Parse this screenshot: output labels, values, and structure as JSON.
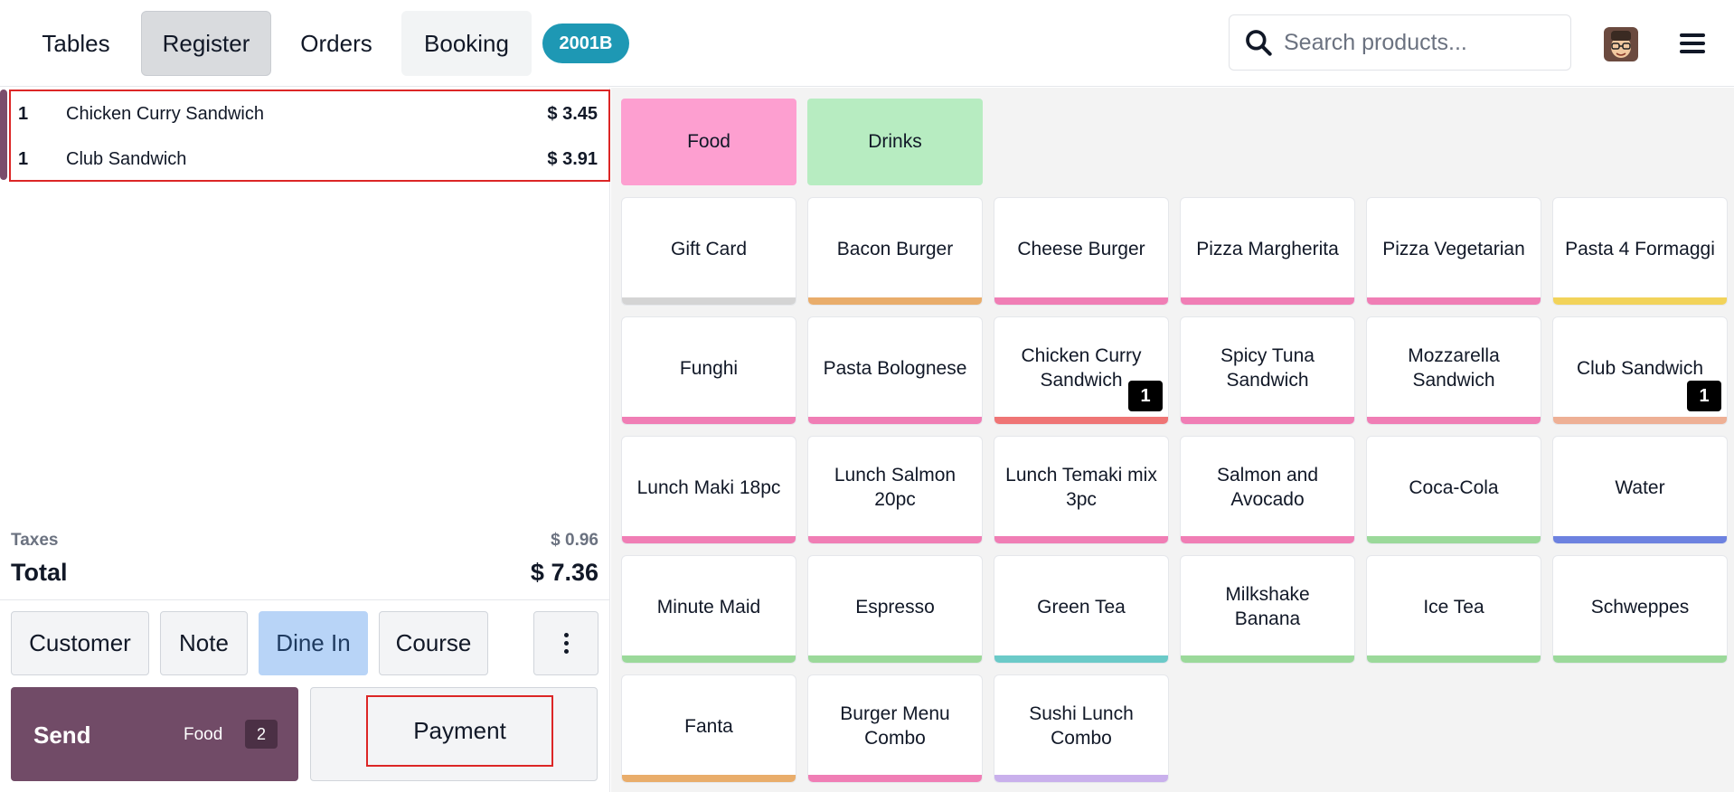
{
  "header": {
    "nav": [
      {
        "label": "Tables"
      },
      {
        "label": "Register"
      },
      {
        "label": "Orders"
      },
      {
        "label": "Booking"
      }
    ],
    "table_badge": "2001B",
    "search": {
      "placeholder": "Search products..."
    }
  },
  "order": {
    "lines": [
      {
        "qty": "1",
        "name": "Chicken Curry Sandwich",
        "price": "$ 3.45"
      },
      {
        "qty": "1",
        "name": "Club Sandwich",
        "price": "$ 3.91"
      }
    ],
    "taxes_label": "Taxes",
    "taxes_value": "$ 0.96",
    "total_label": "Total",
    "total_value": "$ 7.36"
  },
  "actions": {
    "customer": "Customer",
    "note": "Note",
    "dine_in": "Dine In",
    "course": "Course"
  },
  "send": {
    "label": "Send",
    "category": "Food",
    "count": "2"
  },
  "payment": {
    "label": "Payment"
  },
  "categories": [
    {
      "label": "Food",
      "color": "#fd9fd0"
    },
    {
      "label": "Drinks",
      "color": "#b7ecc1"
    }
  ],
  "products": [
    {
      "name": "Gift Card",
      "color": "#d4d4d4",
      "qty": ""
    },
    {
      "name": "Bacon Burger",
      "color": "#e9ad6b",
      "qty": ""
    },
    {
      "name": "Cheese Burger",
      "color": "#f07eb5",
      "qty": ""
    },
    {
      "name": "Pizza Margherita",
      "color": "#f07eb5",
      "qty": ""
    },
    {
      "name": "Pizza Vegetarian",
      "color": "#f07eb5",
      "qty": ""
    },
    {
      "name": "Pasta 4 Formaggi",
      "color": "#f2d35a",
      "qty": ""
    },
    {
      "name": "Funghi",
      "color": "#f07eb5",
      "qty": ""
    },
    {
      "name": "Pasta Bolognese",
      "color": "#f07eb5",
      "qty": ""
    },
    {
      "name": "Chicken Curry Sandwich",
      "color": "#ef7575",
      "qty": "1"
    },
    {
      "name": "Spicy Tuna Sandwich",
      "color": "#f07eb5",
      "qty": ""
    },
    {
      "name": "Mozzarella Sandwich",
      "color": "#f07eb5",
      "qty": ""
    },
    {
      "name": "Club Sandwich",
      "color": "#eeb095",
      "qty": "1"
    },
    {
      "name": "Lunch Maki 18pc",
      "color": "#f07eb5",
      "qty": ""
    },
    {
      "name": "Lunch Salmon 20pc",
      "color": "#f07eb5",
      "qty": ""
    },
    {
      "name": "Lunch Temaki mix 3pc",
      "color": "#f07eb5",
      "qty": ""
    },
    {
      "name": "Salmon and Avocado",
      "color": "#f07eb5",
      "qty": ""
    },
    {
      "name": "Coca-Cola",
      "color": "#9bd99a",
      "qty": ""
    },
    {
      "name": "Water",
      "color": "#6d82e0",
      "qty": ""
    },
    {
      "name": "Minute Maid",
      "color": "#9bd99a",
      "qty": ""
    },
    {
      "name": "Espresso",
      "color": "#9bd99a",
      "qty": ""
    },
    {
      "name": "Green Tea",
      "color": "#6bcac8",
      "qty": ""
    },
    {
      "name": "Milkshake Banana",
      "color": "#9bd99a",
      "qty": ""
    },
    {
      "name": "Ice Tea",
      "color": "#9bd99a",
      "qty": ""
    },
    {
      "name": "Schweppes",
      "color": "#9bd99a",
      "qty": ""
    },
    {
      "name": "Fanta",
      "color": "#e9ad6b",
      "qty": ""
    },
    {
      "name": "Burger Menu Combo",
      "color": "#f07eb5",
      "qty": ""
    },
    {
      "name": "Sushi Lunch Combo",
      "color": "#c9b0ec",
      "qty": ""
    }
  ],
  "icons": {
    "search": "search-icon",
    "avatar": "avatar",
    "menu": "hamburger-menu-icon",
    "more": "more-vertical-icon"
  }
}
